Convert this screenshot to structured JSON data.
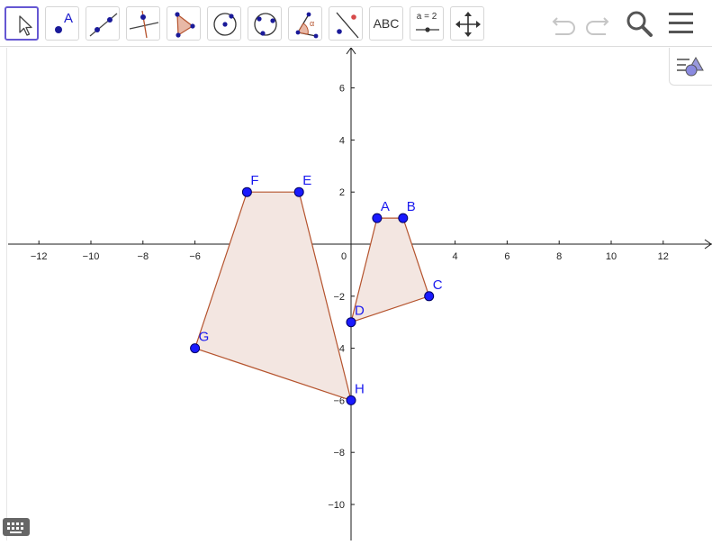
{
  "toolbar": {
    "tools": [
      {
        "name": "move",
        "icon": "cursor-arrow-icon",
        "selected": true
      },
      {
        "name": "point",
        "icon": "point-icon",
        "label": "A"
      },
      {
        "name": "line",
        "icon": "line-icon"
      },
      {
        "name": "perpendicular-line",
        "icon": "perpendicular-line-icon"
      },
      {
        "name": "polygon",
        "icon": "polygon-icon"
      },
      {
        "name": "circle-center-point",
        "icon": "circle-center-icon"
      },
      {
        "name": "circle-three-points",
        "icon": "circle-three-points-icon"
      },
      {
        "name": "angle",
        "icon": "angle-icon",
        "label": "α"
      },
      {
        "name": "reflect-about-line",
        "icon": "reflect-line-icon"
      },
      {
        "name": "text",
        "icon": "text-icon",
        "label": "ABC"
      },
      {
        "name": "slider",
        "icon": "slider-icon",
        "label": "a = 2"
      },
      {
        "name": "move-graphics-view",
        "icon": "move-view-icon"
      }
    ],
    "undo_icon": "undo-icon",
    "redo_icon": "redo-icon",
    "search_icon": "search-icon",
    "menu_icon": "hamburger-menu-icon"
  },
  "graphics": {
    "x_ticks": [
      "−12",
      "−10",
      "−8",
      "−6",
      "−4",
      "−2",
      "0",
      "2",
      "4",
      "6",
      "8",
      "10",
      "12"
    ],
    "y_ticks": [
      "6",
      "4",
      "2",
      "−2",
      "−4",
      "−6",
      "−8",
      "−10"
    ],
    "polygons": [
      {
        "name": "poly-abcd",
        "vertices": [
          "A",
          "B",
          "C",
          "D"
        ]
      },
      {
        "name": "poly-efgh",
        "vertices": [
          "E",
          "F",
          "G",
          "H"
        ]
      }
    ],
    "points": [
      {
        "label": "A",
        "x": 1,
        "y": 1
      },
      {
        "label": "B",
        "x": 2,
        "y": 1
      },
      {
        "label": "C",
        "x": 3,
        "y": -2
      },
      {
        "label": "D",
        "x": 0,
        "y": -3
      },
      {
        "label": "E",
        "x": -2,
        "y": 2
      },
      {
        "label": "F",
        "x": -4,
        "y": 2
      },
      {
        "label": "G",
        "x": -6,
        "y": -4
      },
      {
        "label": "H",
        "x": 0,
        "y": -6
      }
    ]
  },
  "colors": {
    "point_fill": "#1a1aff",
    "point_stroke": "#000066",
    "polygon_fill": "#f3e6e1",
    "polygon_stroke": "#b5532d",
    "label_color": "#1a1aee",
    "axis_color": "#1a1a1a",
    "selected_tool_border": "#6557d2"
  },
  "algebra_toggle_icon": "algebra-view-icon",
  "keyboard_icon": "keyboard-icon"
}
